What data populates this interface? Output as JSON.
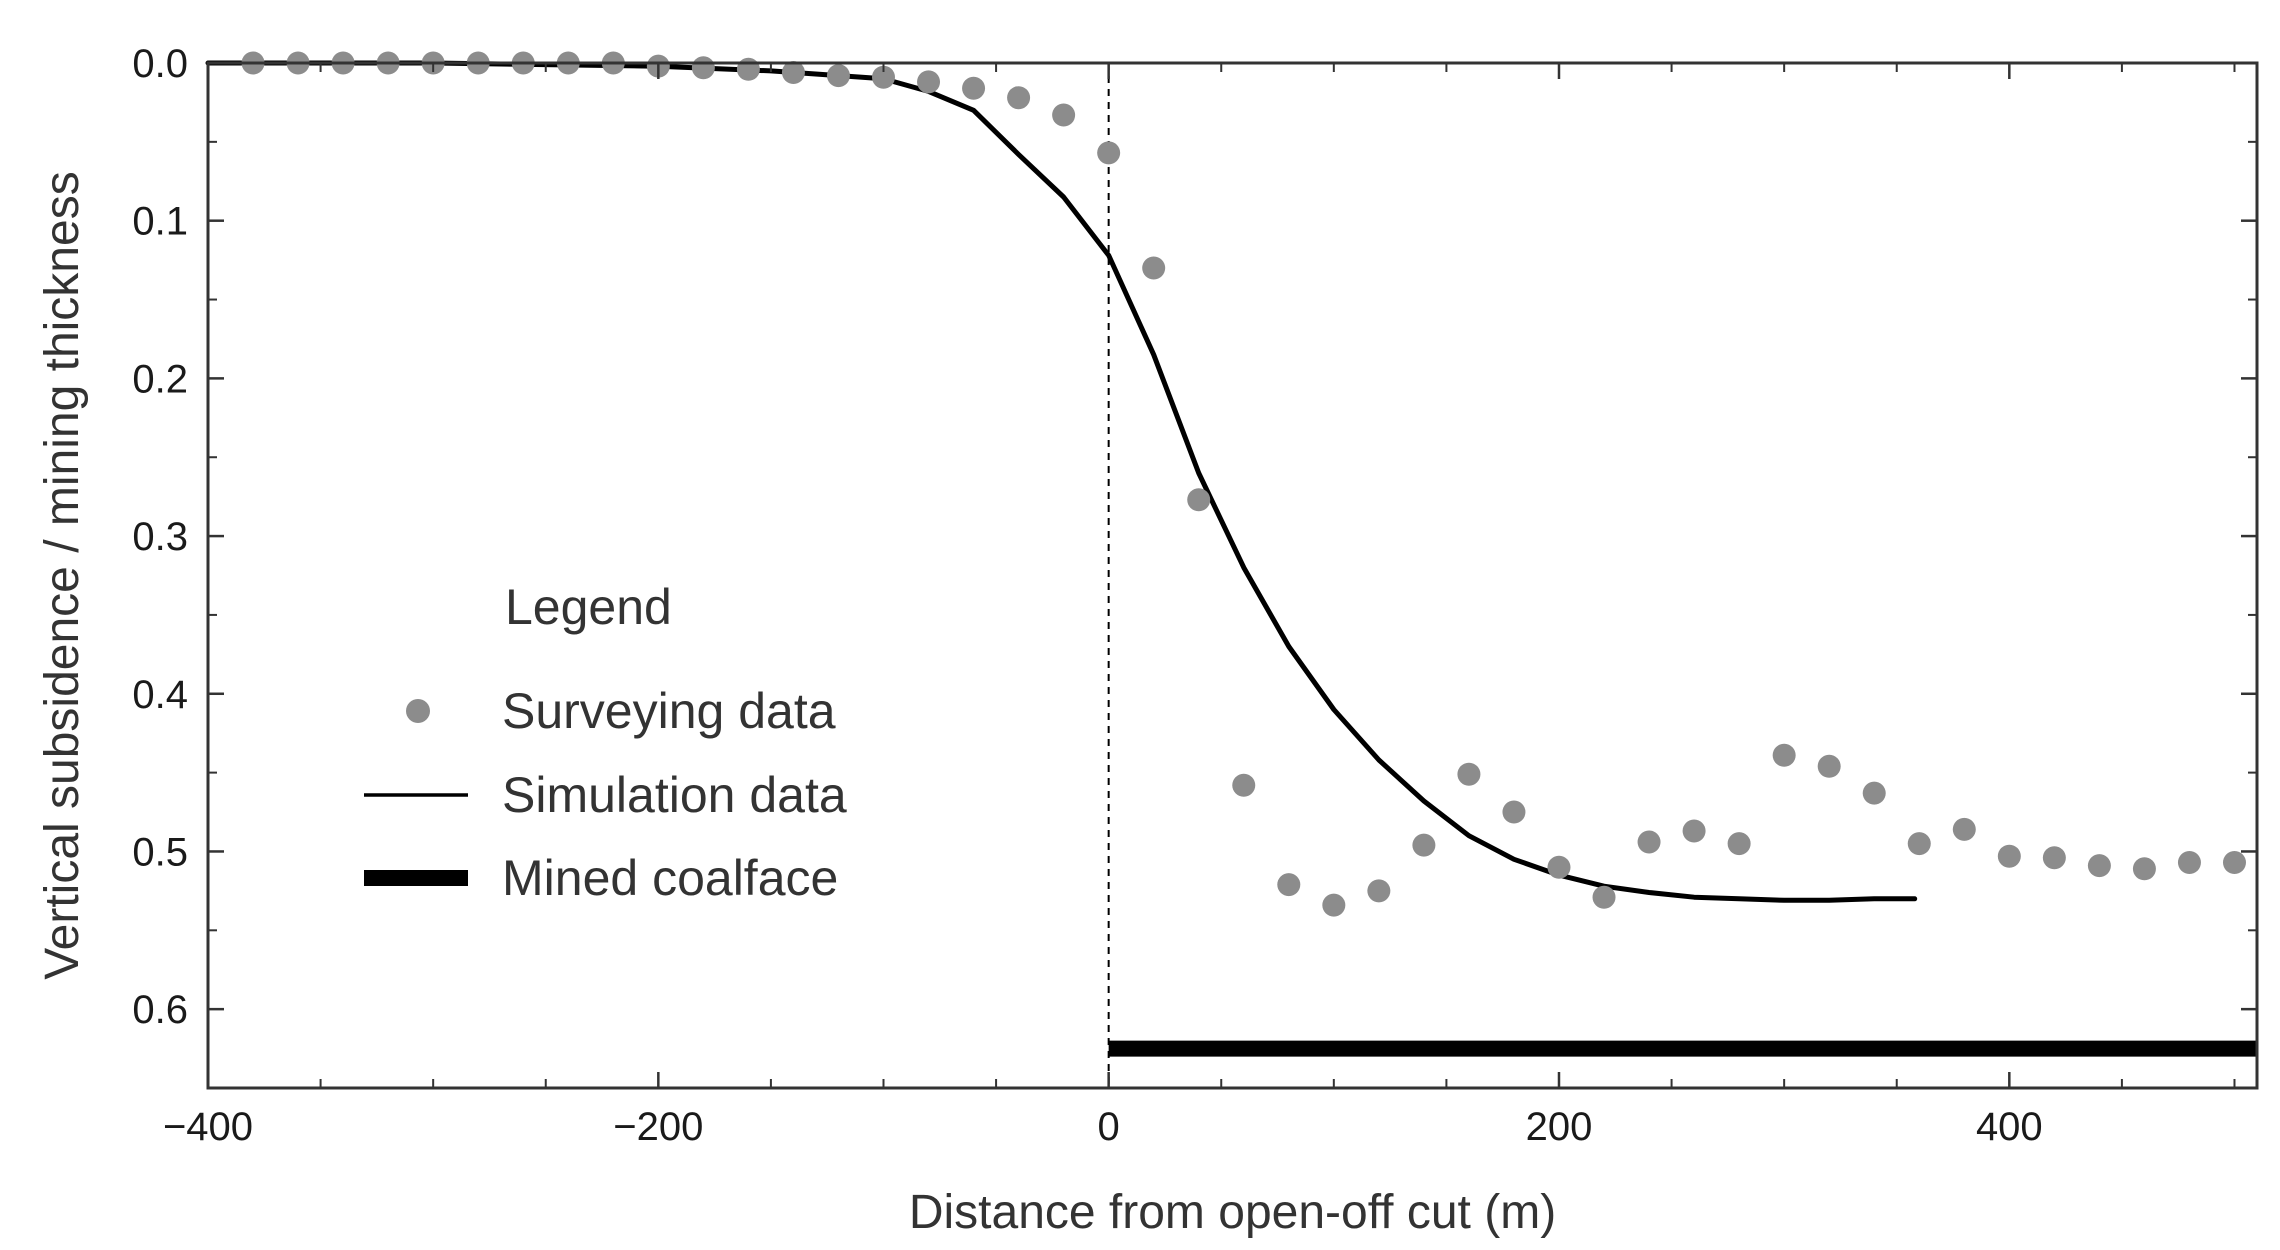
{
  "chart_data": {
    "type": "scatter",
    "title": "",
    "xlabel": "Distance from open-off cut (m)",
    "ylabel": "Vertical subsidence / mining thickness",
    "xlim": [
      -400,
      510
    ],
    "ylim": [
      0.0,
      0.65
    ],
    "y_inverted": true,
    "x_ticks": [
      -400,
      -200,
      0,
      200,
      400
    ],
    "x_tick_labels": [
      "−400",
      "−200",
      "0",
      "200",
      "400"
    ],
    "y_ticks": [
      0.0,
      0.1,
      0.2,
      0.3,
      0.4,
      0.5,
      0.6
    ],
    "y_tick_labels": [
      "0.0",
      "0.1",
      "0.2",
      "0.3",
      "0.4",
      "0.5",
      "0.6"
    ],
    "grid": false,
    "legend_position": "middle-left",
    "legend": {
      "title": "Legend",
      "entries": [
        "Surveying data",
        "Simulation data",
        "Mined coalface"
      ]
    },
    "colors": {
      "surveying": "#8c8c8c",
      "simulation": "#000000",
      "coalface": "#000000",
      "axis": "#333333"
    },
    "reference_line_x": 0,
    "series": [
      {
        "name": "Surveying data",
        "kind": "scatter",
        "x": [
          -380,
          -360,
          -340,
          -320,
          -300,
          -280,
          -260,
          -240,
          -220,
          -200,
          -180,
          -160,
          -140,
          -120,
          -100,
          -80,
          -60,
          -40,
          -20,
          0,
          20,
          40,
          60,
          80,
          100,
          120,
          140,
          160,
          180,
          200,
          220,
          240,
          260,
          280,
          300,
          320,
          340,
          360,
          380,
          400,
          420,
          440,
          460,
          480,
          500
        ],
        "y": [
          0.0,
          0.0,
          0.0,
          0.0,
          0.0,
          0.0,
          0.0,
          0.0,
          0.0,
          0.002,
          0.003,
          0.004,
          0.006,
          0.008,
          0.009,
          0.012,
          0.016,
          0.022,
          0.033,
          0.057,
          0.13,
          0.277,
          0.458,
          0.521,
          0.534,
          0.525,
          0.496,
          0.451,
          0.475,
          0.51,
          0.529,
          0.494,
          0.487,
          0.495,
          0.439,
          0.446,
          0.463,
          0.495,
          0.486,
          0.503,
          0.504,
          0.509,
          0.511,
          0.507,
          0.507
        ]
      },
      {
        "name": "Simulation data",
        "kind": "line",
        "x": [
          -400,
          -300,
          -200,
          -150,
          -100,
          -80,
          -60,
          -40,
          -20,
          0,
          20,
          40,
          60,
          80,
          100,
          120,
          140,
          160,
          180,
          200,
          220,
          240,
          260,
          280,
          300,
          320,
          340,
          358
        ],
        "y": [
          0.0,
          0.0,
          0.002,
          0.005,
          0.01,
          0.018,
          0.03,
          0.058,
          0.085,
          0.122,
          0.185,
          0.26,
          0.32,
          0.37,
          0.41,
          0.442,
          0.468,
          0.49,
          0.505,
          0.515,
          0.522,
          0.526,
          0.529,
          0.53,
          0.531,
          0.531,
          0.53,
          0.53
        ]
      },
      {
        "name": "Mined coalface",
        "kind": "bar-segment",
        "x": [
          0,
          510
        ],
        "y": [
          0.625,
          0.625
        ]
      }
    ]
  }
}
